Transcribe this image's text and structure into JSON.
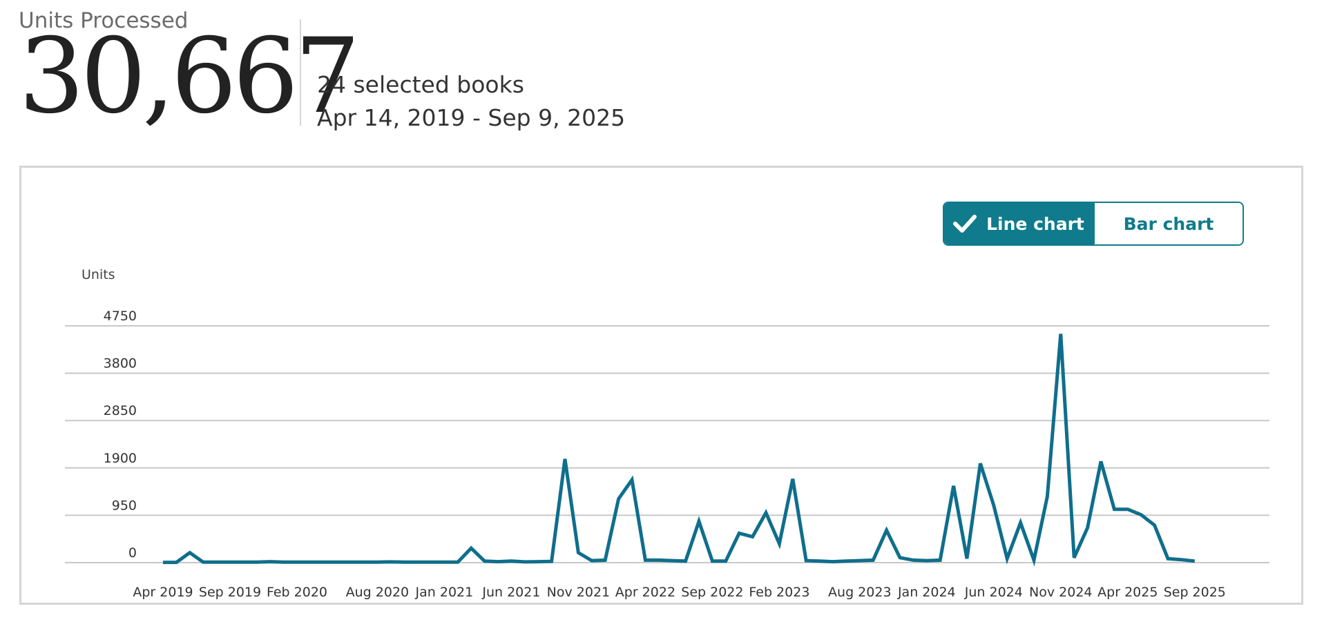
{
  "summary": {
    "label": "Units Processed",
    "value": "30,667",
    "books": "24 selected books",
    "date_range": "Apr 14, 2019 - Sep 9, 2025"
  },
  "toggle": {
    "line_label": "Line chart",
    "bar_label": "Bar chart",
    "active": "line",
    "accent_color": "#0f7b8c"
  },
  "chart_data": {
    "type": "line",
    "ylabel": "Units",
    "ylim": [
      0,
      4750
    ],
    "y_ticks": [
      0,
      950,
      1900,
      2850,
      3800,
      4750
    ],
    "grid": true,
    "line_color": "#0f6e8c",
    "x_tick_labels": [
      {
        "label": "Apr 2019",
        "index": 0
      },
      {
        "label": "Sep 2019",
        "index": 5
      },
      {
        "label": "Feb 2020",
        "index": 10
      },
      {
        "label": "Aug 2020",
        "index": 16
      },
      {
        "label": "Jan 2021",
        "index": 21
      },
      {
        "label": "Jun 2021",
        "index": 26
      },
      {
        "label": "Nov 2021",
        "index": 31
      },
      {
        "label": "Apr 2022",
        "index": 36
      },
      {
        "label": "Sep 2022",
        "index": 41
      },
      {
        "label": "Feb 2023",
        "index": 46
      },
      {
        "label": "Aug 2023",
        "index": 52
      },
      {
        "label": "Jan 2024",
        "index": 57
      },
      {
        "label": "Jun 2024",
        "index": 62
      },
      {
        "label": "Nov 2024",
        "index": 67
      },
      {
        "label": "Apr 2025",
        "index": 72
      },
      {
        "label": "Sep 2025",
        "index": 77
      }
    ],
    "series": [
      {
        "values": [
          5,
          5,
          200,
          10,
          10,
          10,
          10,
          10,
          20,
          10,
          10,
          10,
          10,
          10,
          10,
          10,
          10,
          15,
          10,
          10,
          10,
          10,
          10,
          290,
          30,
          20,
          30,
          15,
          20,
          25,
          2080,
          200,
          40,
          50,
          1280,
          1660,
          50,
          50,
          40,
          30,
          830,
          30,
          30,
          590,
          520,
          1000,
          380,
          1680,
          40,
          30,
          20,
          30,
          40,
          50,
          650,
          100,
          50,
          40,
          50,
          1540,
          80,
          1990,
          1150,
          80,
          800,
          50,
          1330,
          4590,
          100,
          700,
          2030,
          1070,
          1070,
          960,
          750,
          80,
          60,
          30
        ]
      }
    ]
  }
}
